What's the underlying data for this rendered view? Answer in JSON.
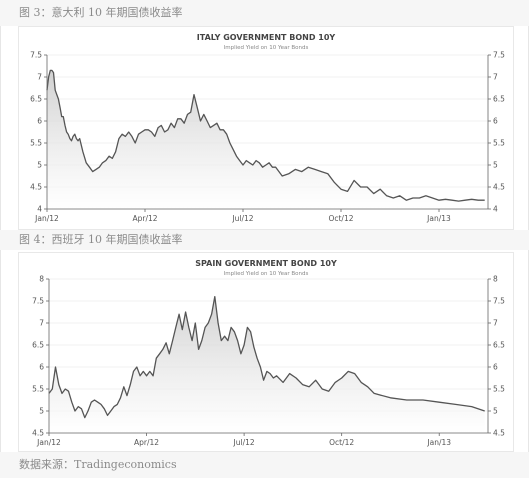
{
  "captions": {
    "fig3": "图 3：意大利 10 年期国债收益率",
    "fig4": "图 4：西班牙 10 年期国债收益率",
    "source": "数据来源：Tradingeconomics"
  },
  "chart_data": [
    {
      "type": "area",
      "title": "ITALY GOVERNMENT BOND 10Y",
      "subtitle": "Implied Yield on 10 Year Bonds",
      "x_ticks": [
        "Jan/12",
        "Apr/12",
        "Jul/12",
        "Oct/12",
        "Jan/13"
      ],
      "y_ticks": [
        "4",
        "4.5",
        "5",
        "5.5",
        "6",
        "6.5",
        "7",
        "7.5"
      ],
      "ylim": [
        4,
        7.5
      ],
      "x": [
        0.0,
        0.05,
        0.1,
        0.15,
        0.2,
        0.25,
        0.3,
        0.35,
        0.4,
        0.45,
        0.5,
        0.55,
        0.6,
        0.65,
        0.7,
        0.75,
        0.8,
        0.85,
        0.9,
        0.95,
        1.0,
        1.1,
        1.2,
        1.3,
        1.4,
        1.5,
        1.6,
        1.7,
        1.8,
        1.9,
        2.0,
        2.1,
        2.2,
        2.3,
        2.4,
        2.5,
        2.6,
        2.7,
        2.8,
        2.9,
        3.0,
        3.1,
        3.2,
        3.3,
        3.4,
        3.5,
        3.6,
        3.7,
        3.8,
        3.9,
        4.0,
        4.1,
        4.2,
        4.3,
        4.4,
        4.5,
        4.6,
        4.7,
        4.8,
        4.9,
        5.0,
        5.1,
        5.2,
        5.3,
        5.4,
        5.5,
        5.6,
        5.7,
        5.8,
        5.9,
        6.0,
        6.1,
        6.2,
        6.3,
        6.4,
        6.5,
        6.6,
        6.7,
        6.8,
        6.9,
        7.0,
        7.2,
        7.4,
        7.6,
        7.8,
        8.0,
        8.2,
        8.4,
        8.6,
        8.8,
        9.0,
        9.2,
        9.4,
        9.6,
        9.8,
        10.0,
        10.2,
        10.4,
        10.6,
        10.8,
        11.0,
        11.2,
        11.4,
        11.6,
        11.8,
        12.0,
        12.2,
        12.4,
        12.6,
        12.8,
        13.0,
        13.2,
        13.4
      ],
      "values": [
        6.7,
        7.0,
        7.15,
        7.15,
        7.1,
        6.7,
        6.6,
        6.5,
        6.3,
        6.1,
        6.1,
        5.9,
        5.75,
        5.7,
        5.6,
        5.55,
        5.65,
        5.7,
        5.6,
        5.55,
        5.6,
        5.3,
        5.05,
        4.95,
        4.85,
        4.9,
        4.95,
        5.05,
        5.1,
        5.2,
        5.15,
        5.3,
        5.6,
        5.7,
        5.65,
        5.75,
        5.65,
        5.5,
        5.7,
        5.75,
        5.8,
        5.8,
        5.75,
        5.65,
        5.85,
        5.9,
        5.75,
        5.8,
        5.95,
        5.85,
        6.05,
        6.05,
        5.95,
        6.15,
        6.2,
        6.6,
        6.3,
        6.0,
        6.15,
        6.0,
        5.85,
        5.9,
        5.95,
        5.8,
        5.8,
        5.7,
        5.5,
        5.35,
        5.2,
        5.1,
        5.0,
        5.1,
        5.05,
        5.0,
        5.1,
        5.05,
        4.95,
        5.0,
        5.05,
        4.95,
        4.95,
        4.75,
        4.8,
        4.9,
        4.85,
        4.95,
        4.9,
        4.85,
        4.8,
        4.6,
        4.45,
        4.4,
        4.65,
        4.5,
        4.5,
        4.35,
        4.45,
        4.3,
        4.25,
        4.3,
        4.2,
        4.25,
        4.25,
        4.3,
        4.25,
        4.2,
        4.22,
        4.2,
        4.18,
        4.2,
        4.22,
        4.2,
        4.2
      ]
    },
    {
      "type": "area",
      "title": "SPAIN GOVERNMENT BOND 10Y",
      "subtitle": "Implied Yield on 10 Year Bonds",
      "x_ticks": [
        "Jan/12",
        "Apr/12",
        "Jul/12",
        "Oct/12",
        "Jan/13"
      ],
      "y_ticks": [
        "4.5",
        "5",
        "5.5",
        "6",
        "6.5",
        "7",
        "7.5",
        "8"
      ],
      "ylim": [
        4.5,
        8
      ],
      "x": [
        0.0,
        0.1,
        0.2,
        0.3,
        0.4,
        0.5,
        0.6,
        0.7,
        0.8,
        0.9,
        1.0,
        1.1,
        1.2,
        1.3,
        1.4,
        1.5,
        1.6,
        1.7,
        1.8,
        1.9,
        2.0,
        2.1,
        2.2,
        2.3,
        2.4,
        2.5,
        2.6,
        2.7,
        2.8,
        2.9,
        3.0,
        3.1,
        3.2,
        3.3,
        3.4,
        3.5,
        3.6,
        3.7,
        3.8,
        3.9,
        4.0,
        4.1,
        4.2,
        4.3,
        4.4,
        4.5,
        4.6,
        4.7,
        4.8,
        4.9,
        5.0,
        5.1,
        5.2,
        5.3,
        5.4,
        5.5,
        5.6,
        5.7,
        5.8,
        5.9,
        6.0,
        6.1,
        6.2,
        6.3,
        6.4,
        6.5,
        6.6,
        6.7,
        6.8,
        6.9,
        7.0,
        7.2,
        7.4,
        7.6,
        7.8,
        8.0,
        8.2,
        8.4,
        8.6,
        8.8,
        9.0,
        9.2,
        9.4,
        9.6,
        9.8,
        10.0,
        10.5,
        11.0,
        11.5,
        12.0,
        12.5,
        13.0,
        13.4
      ],
      "values": [
        5.4,
        5.5,
        6.0,
        5.6,
        5.4,
        5.5,
        5.45,
        5.2,
        5.0,
        5.1,
        5.05,
        4.85,
        5.0,
        5.2,
        5.25,
        5.2,
        5.15,
        5.05,
        4.9,
        5.0,
        5.1,
        5.15,
        5.3,
        5.55,
        5.35,
        5.6,
        5.9,
        6.0,
        5.8,
        5.9,
        5.8,
        5.9,
        5.8,
        6.2,
        6.3,
        6.4,
        6.55,
        6.3,
        6.6,
        6.9,
        7.2,
        6.85,
        7.25,
        6.9,
        6.6,
        7.0,
        6.4,
        6.6,
        6.9,
        7.0,
        7.2,
        7.6,
        7.0,
        6.6,
        6.7,
        6.6,
        6.9,
        6.8,
        6.6,
        6.3,
        6.5,
        6.9,
        6.8,
        6.45,
        6.2,
        6.0,
        5.7,
        5.9,
        5.85,
        5.75,
        5.8,
        5.65,
        5.85,
        5.75,
        5.6,
        5.55,
        5.7,
        5.5,
        5.45,
        5.65,
        5.75,
        5.9,
        5.85,
        5.65,
        5.55,
        5.4,
        5.3,
        5.25,
        5.25,
        5.2,
        5.15,
        5.1,
        5.0
      ]
    }
  ]
}
